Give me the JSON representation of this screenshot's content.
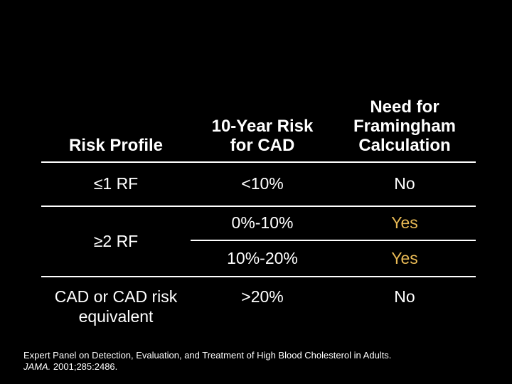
{
  "slide": {
    "background": "#000000",
    "text_color": "#FFFFFF",
    "accent_gold": "#E9BA55",
    "rule_color": "#FFFFFF"
  },
  "table": {
    "headers": [
      {
        "label": "Risk Profile"
      },
      {
        "label": "10-Year Risk\nfor CAD"
      },
      {
        "label": "Need for\nFramingham\nCalculation"
      }
    ],
    "rows": [
      {
        "profile": "≤1 RF",
        "risk": "<10%",
        "need": "No"
      },
      {
        "profile": "≥2 RF",
        "subrows": [
          {
            "risk": "0%-10%",
            "need": "Yes"
          },
          {
            "risk": "10%-20%",
            "need": "Yes"
          }
        ]
      },
      {
        "profile": "CAD or CAD risk\nequivalent",
        "risk": ">20%",
        "need": "No"
      }
    ]
  },
  "footer": {
    "line1": "Expert Panel on Detection, Evaluation, and Treatment of High Blood Cholesterol in Adults.",
    "journal": "JAMA.",
    "citation": " 2001;285:2486."
  }
}
